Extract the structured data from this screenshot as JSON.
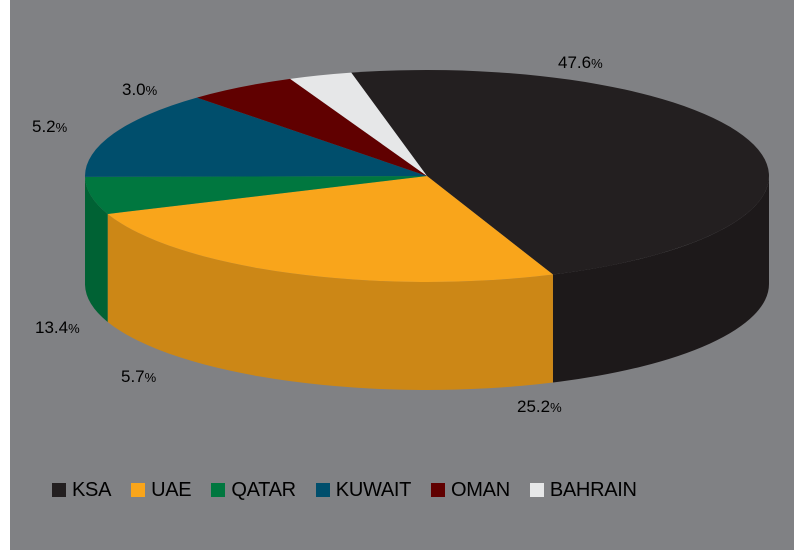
{
  "chart_data": {
    "type": "pie",
    "variant": "3d",
    "slices": [
      {
        "name": "KSA",
        "value": 47.6,
        "label": "47.6",
        "color": "#231f20"
      },
      {
        "name": "UAE",
        "value": 25.2,
        "label": "25.2",
        "color": "#f9a51b"
      },
      {
        "name": "QATAR",
        "value": 5.7,
        "label": "5.7",
        "color": "#00773f"
      },
      {
        "name": "KUWAIT",
        "value": 13.4,
        "label": "13.4",
        "color": "#004e6c"
      },
      {
        "name": "OMAN",
        "value": 5.2,
        "label": "5.2",
        "color": "#600000"
      },
      {
        "name": "BAHRAIN",
        "value": 3.0,
        "label": "3.0",
        "color": "#e6e7e8"
      }
    ],
    "unit_suffix": "%",
    "legend": {
      "position": "bottom"
    },
    "background": "#808184"
  }
}
